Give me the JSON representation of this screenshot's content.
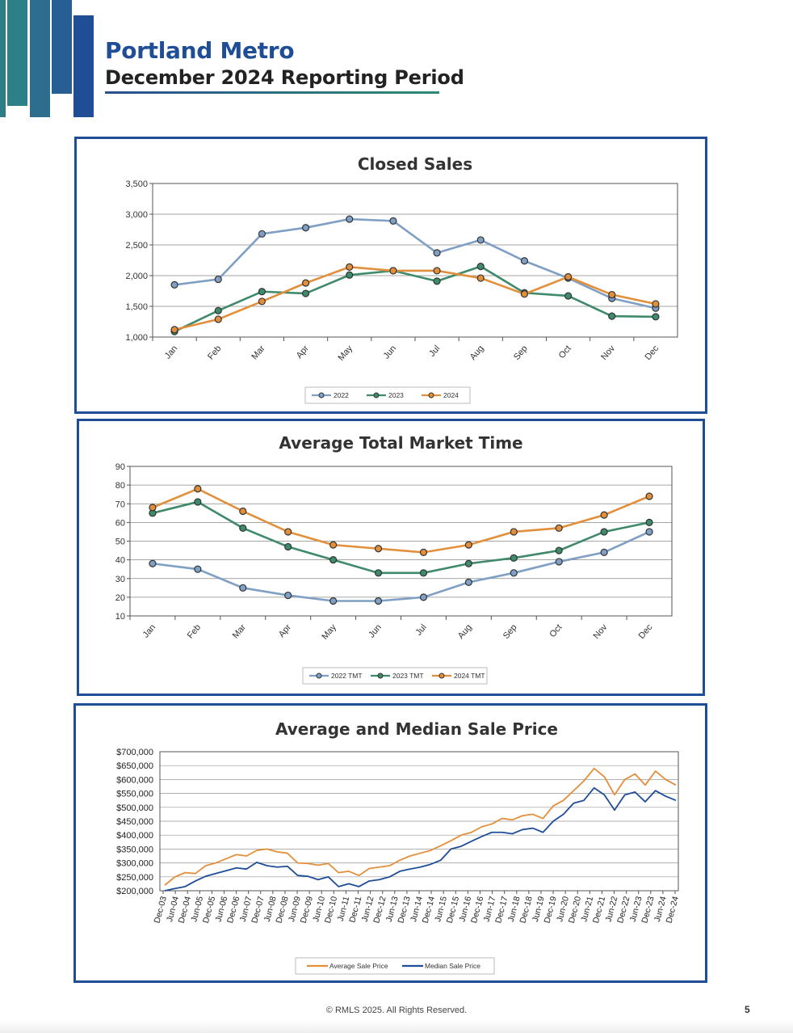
{
  "header": {
    "title": "Portland Metro",
    "subtitle": "December 2024 Reporting Period"
  },
  "footer": {
    "copyright": "© RMLS 2025. All Rights Reserved.",
    "page_number": "5"
  },
  "colors": {
    "brand_blue": "#1f4e96",
    "teal": "#2e8b74",
    "series_2022": "#7f9fc4",
    "series_2023": "#3f8a6a",
    "series_2024": "#e28f3b",
    "median_line": "#1f4e96",
    "average_line": "#e28f3b"
  },
  "chart_data": [
    {
      "type": "line",
      "title": "Closed Sales",
      "categories": [
        "Jan",
        "Feb",
        "Mar",
        "Apr",
        "May",
        "Jun",
        "Jul",
        "Aug",
        "Sep",
        "Oct",
        "Nov",
        "Dec"
      ],
      "ylim": [
        1000,
        3500
      ],
      "yticks": [
        "1,000",
        "1,500",
        "2,000",
        "2,500",
        "3,000",
        "3,500"
      ],
      "legend_position": "bottom",
      "grid": true,
      "series": [
        {
          "name": "2022",
          "values": [
            1850,
            1940,
            2680,
            2780,
            2920,
            2890,
            2370,
            2580,
            2240,
            1960,
            1630,
            1470
          ]
        },
        {
          "name": "2023",
          "values": [
            1090,
            1430,
            1740,
            1710,
            2010,
            2080,
            1910,
            2150,
            1720,
            1670,
            1340,
            1330
          ]
        },
        {
          "name": "2024",
          "values": [
            1120,
            1290,
            1580,
            1880,
            2140,
            2080,
            2080,
            1960,
            1700,
            1980,
            1690,
            1540
          ]
        }
      ]
    },
    {
      "type": "line",
      "title": "Average Total Market Time",
      "categories": [
        "Jan",
        "Feb",
        "Mar",
        "Apr",
        "May",
        "Jun",
        "Jul",
        "Aug",
        "Sep",
        "Oct",
        "Nov",
        "Dec"
      ],
      "ylim": [
        10,
        90
      ],
      "yticks": [
        "10",
        "20",
        "30",
        "40",
        "50",
        "60",
        "70",
        "80",
        "90"
      ],
      "legend_position": "bottom",
      "grid": true,
      "series": [
        {
          "name": "2022 TMT",
          "values": [
            38,
            35,
            25,
            21,
            18,
            18,
            20,
            28,
            33,
            39,
            44,
            55
          ]
        },
        {
          "name": "2023 TMT",
          "values": [
            65,
            71,
            57,
            47,
            40,
            33,
            33,
            38,
            41,
            45,
            55,
            60
          ]
        },
        {
          "name": "2024 TMT",
          "values": [
            68,
            78,
            66,
            55,
            48,
            46,
            44,
            48,
            55,
            57,
            64,
            74
          ]
        }
      ]
    },
    {
      "type": "line",
      "title": "Average and Median Sale Price",
      "ylim": [
        200000,
        700000
      ],
      "yticks": [
        "$200,000",
        "$250,000",
        "$300,000",
        "$350,000",
        "$400,000",
        "$450,000",
        "$500,000",
        "$550,000",
        "$600,000",
        "$650,000",
        "$700,000"
      ],
      "xticks": [
        "Dec-03",
        "Jun-04",
        "Dec-04",
        "Jun-05",
        "Dec-05",
        "Jun-06",
        "Dec-06",
        "Jun-07",
        "Dec-07",
        "Jun-08",
        "Dec-08",
        "Jun-09",
        "Dec-09",
        "Jun-10",
        "Dec-10",
        "Jun-11",
        "Dec-11",
        "Jun-12",
        "Dec-12",
        "Jun-13",
        "Dec-13",
        "Jun-14",
        "Dec-14",
        "Jun-15",
        "Dec-15",
        "Jun-16",
        "Dec-16",
        "Jun-17",
        "Dec-17",
        "Jun-18",
        "Dec-18",
        "Jun-19",
        "Dec-19",
        "Jun-20",
        "Dec-20",
        "Jun-21",
        "Dec-21",
        "Jun-22",
        "Dec-22",
        "Jun-23",
        "Dec-23",
        "Jun-24",
        "Dec-24"
      ],
      "legend_position": "bottom",
      "grid": true,
      "series": [
        {
          "name": "Average Sale Price",
          "values": [
            220000,
            250000,
            265000,
            262000,
            290000,
            300000,
            315000,
            330000,
            325000,
            345000,
            350000,
            340000,
            335000,
            300000,
            298000,
            292000,
            298000,
            265000,
            270000,
            255000,
            280000,
            285000,
            290000,
            310000,
            325000,
            335000,
            345000,
            362000,
            380000,
            400000,
            410000,
            430000,
            440000,
            460000,
            455000,
            470000,
            475000,
            460000,
            505000,
            525000,
            560000,
            595000,
            640000,
            610000,
            545000,
            600000,
            620000,
            580000,
            630000,
            600000,
            580000
          ]
        },
        {
          "name": "Median Sale Price",
          "values": [
            200000,
            208000,
            215000,
            235000,
            252000,
            262000,
            272000,
            282000,
            278000,
            302000,
            290000,
            285000,
            288000,
            255000,
            252000,
            240000,
            250000,
            215000,
            225000,
            215000,
            235000,
            240000,
            250000,
            270000,
            278000,
            285000,
            295000,
            310000,
            350000,
            360000,
            378000,
            395000,
            410000,
            410000,
            405000,
            420000,
            425000,
            410000,
            450000,
            475000,
            515000,
            525000,
            570000,
            545000,
            490000,
            545000,
            555000,
            520000,
            560000,
            540000,
            525000
          ]
        }
      ]
    }
  ]
}
